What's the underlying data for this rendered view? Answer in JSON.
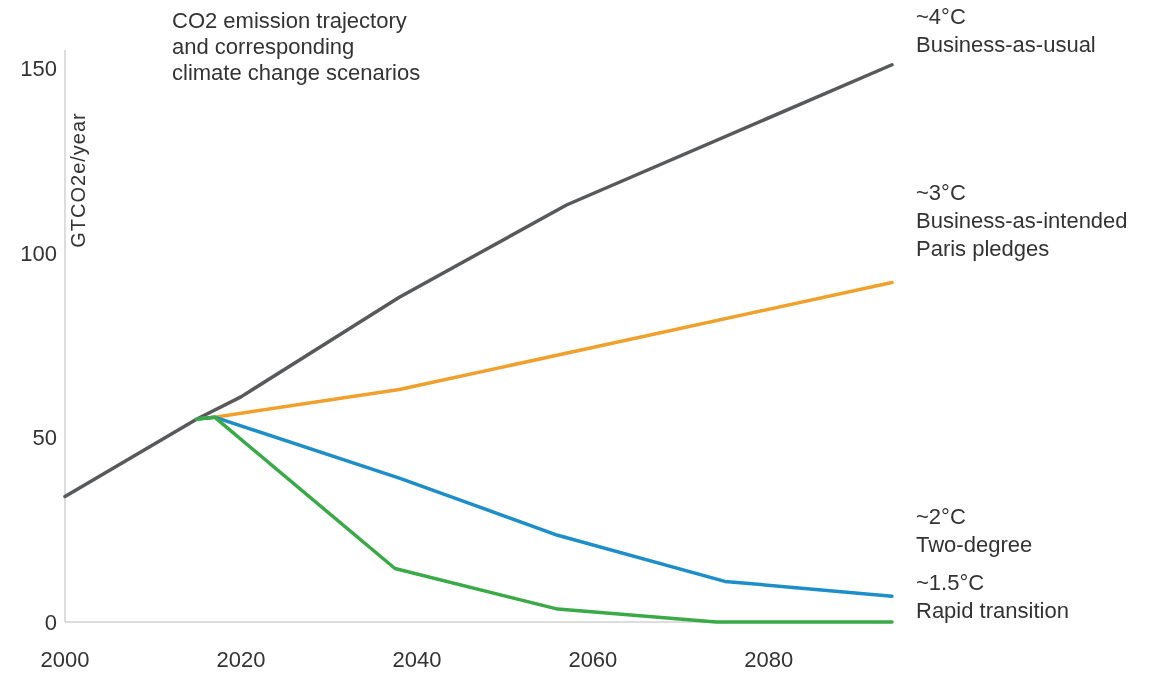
{
  "chart_data": {
    "type": "line",
    "title": "CO2 emission trajectory\nand corresponding\nclimate change scenarios",
    "ylabel": "GTCO2e/year",
    "xlim": [
      2000,
      2094
    ],
    "xticks": [
      2000,
      2020,
      2040,
      2060,
      2080
    ],
    "ylim": [
      0,
      155
    ],
    "yticks": [
      0,
      50,
      100,
      150
    ],
    "grid": false,
    "marker": "none",
    "line_style": "solid",
    "series": [
      {
        "name": "~4°C\nBusiness-as-usual",
        "color": "#58595b",
        "x": [
          2000,
          2015,
          2020,
          2038,
          2057,
          2094
        ],
        "values": [
          34,
          55,
          61,
          88,
          113,
          151
        ]
      },
      {
        "name": "~3°C\nBusiness-as-intended\nParis pledges",
        "color": "#f0a02c",
        "x": [
          2015,
          2017,
          2038,
          2094
        ],
        "values": [
          55,
          55.5,
          63,
          92
        ]
      },
      {
        "name": "~2°C\nTwo-degree",
        "color": "#1e8ec8",
        "x": [
          2015,
          2017,
          2038,
          2056,
          2075,
          2094
        ],
        "values": [
          55,
          55.5,
          39,
          23.5,
          11,
          7
        ]
      },
      {
        "name": "~1.5°C\nRapid transition",
        "color": "#3aaa48",
        "x": [
          2015,
          2017,
          2037.5,
          2056,
          2074,
          2094
        ],
        "values": [
          55,
          55.5,
          14.5,
          3.5,
          0,
          0
        ]
      }
    ]
  }
}
